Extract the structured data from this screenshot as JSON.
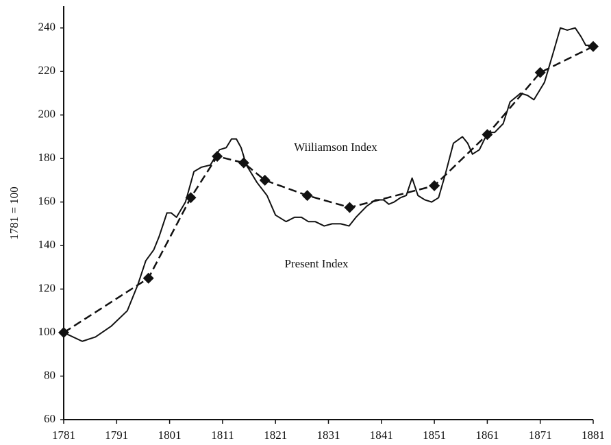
{
  "chart_data": {
    "type": "line",
    "ylabel": "1781 = 100",
    "xlim": [
      1781,
      1881
    ],
    "xticks": [
      1781,
      1791,
      1801,
      1811,
      1821,
      1831,
      1841,
      1851,
      1861,
      1871,
      1881
    ],
    "ylim": [
      60,
      250
    ],
    "yticks": [
      60,
      80,
      100,
      120,
      140,
      160,
      180,
      200,
      220,
      240
    ],
    "series": [
      {
        "name": "Present Index",
        "color": "#111111",
        "style": "solid",
        "x": [
          1781,
          1784.5,
          1787,
          1790,
          1793,
          1795,
          1796.5,
          1798,
          1799,
          1800.5,
          1801.3,
          1802.3,
          1804,
          1805.6,
          1807,
          1808.7,
          1810.4,
          1811.7,
          1812.7,
          1813.6,
          1814.5,
          1815.5,
          1817.5,
          1819.4,
          1821,
          1823,
          1824.6,
          1825.9,
          1827.2,
          1828.5,
          1830.2,
          1831.7,
          1833.3,
          1834.9,
          1836.2,
          1838.2,
          1839.9,
          1841.4,
          1842.4,
          1843.4,
          1844.6,
          1845.7,
          1846.8,
          1847.9,
          1849.2,
          1850.5,
          1851.8,
          1853.1,
          1854.6,
          1856.3,
          1857.3,
          1858.2,
          1859.5,
          1861.1,
          1862.4,
          1864,
          1865.3,
          1867.3,
          1868.6,
          1869.8,
          1871.8,
          1873.5,
          1874.8,
          1876.1,
          1877.6,
          1878.7,
          1879.6,
          1881
        ],
        "values": [
          100,
          96,
          98,
          103,
          110,
          122,
          133,
          138,
          144,
          155,
          155,
          153,
          160,
          174,
          176,
          177,
          184,
          185,
          189,
          189,
          185,
          177,
          169,
          163,
          154,
          151,
          153,
          153,
          151,
          151,
          149,
          150,
          150,
          149,
          153,
          158,
          161,
          161,
          159,
          160,
          162,
          163,
          171,
          163,
          161,
          160,
          162,
          173,
          187,
          190,
          187,
          182,
          184,
          192,
          192,
          196,
          206,
          210,
          209,
          207,
          215,
          229,
          240,
          239,
          240,
          236,
          232,
          232
        ]
      },
      {
        "name": "Wiiliamson Index",
        "color": "#111111",
        "style": "dashed",
        "marker": "diamond",
        "x": [
          1781,
          1797,
          1805,
          1810,
          1815,
          1819,
          1827,
          1835,
          1851,
          1861,
          1871,
          1881
        ],
        "values": [
          100,
          125,
          162,
          181,
          178,
          170,
          163,
          157.5,
          167.5,
          191,
          219.5,
          231.5
        ]
      }
    ]
  }
}
